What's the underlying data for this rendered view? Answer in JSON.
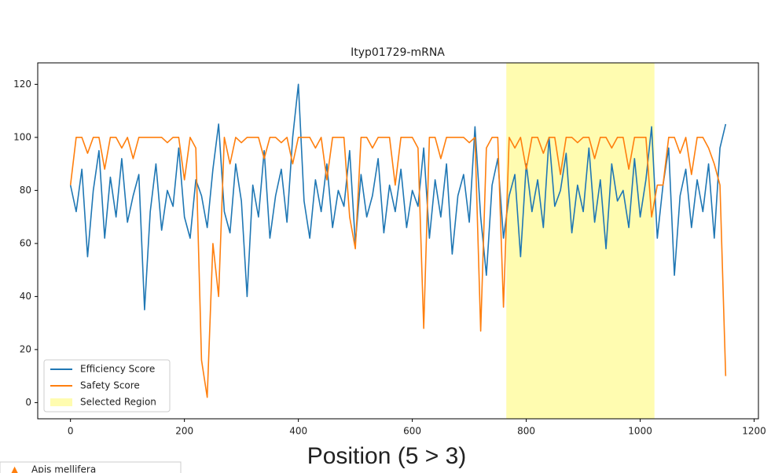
{
  "chart_data": {
    "type": "line",
    "title": "Ityp01729-mRNA",
    "xlabel": "Position (5 > 3)",
    "x": [
      0,
      10,
      20,
      30,
      40,
      50,
      60,
      70,
      80,
      90,
      100,
      110,
      120,
      130,
      140,
      150,
      160,
      170,
      180,
      190,
      200,
      210,
      220,
      230,
      240,
      250,
      260,
      270,
      280,
      290,
      300,
      310,
      320,
      330,
      340,
      350,
      360,
      370,
      380,
      390,
      400,
      410,
      420,
      430,
      440,
      450,
      460,
      470,
      480,
      490,
      500,
      510,
      520,
      530,
      540,
      550,
      560,
      570,
      580,
      590,
      600,
      610,
      620,
      630,
      640,
      650,
      660,
      670,
      680,
      690,
      700,
      710,
      720,
      730,
      740,
      750,
      760,
      770,
      780,
      790,
      800,
      810,
      820,
      830,
      840,
      850,
      860,
      870,
      880,
      890,
      900,
      910,
      920,
      930,
      940,
      950,
      960,
      970,
      980,
      990,
      1000,
      1010,
      1020,
      1030,
      1040,
      1050,
      1060,
      1070,
      1080,
      1090,
      1100,
      1110,
      1120,
      1130,
      1140,
      1150
    ],
    "series": [
      {
        "name": "Efficiency Score",
        "color": "#1f77b4",
        "values": [
          82,
          72,
          88,
          55,
          80,
          95,
          62,
          85,
          70,
          92,
          68,
          78,
          86,
          35,
          72,
          90,
          65,
          80,
          74,
          96,
          70,
          62,
          84,
          78,
          66,
          88,
          105,
          72,
          64,
          90,
          76,
          40,
          82,
          70,
          95,
          62,
          78,
          88,
          68,
          100,
          120,
          76,
          62,
          84,
          72,
          90,
          66,
          80,
          74,
          95,
          60,
          86,
          70,
          78,
          92,
          64,
          82,
          72,
          88,
          66,
          80,
          74,
          96,
          62,
          84,
          70,
          90,
          56,
          78,
          86,
          68,
          104,
          70,
          48,
          82,
          92,
          62,
          78,
          86,
          55,
          90,
          72,
          84,
          66,
          100,
          74,
          80,
          94,
          64,
          82,
          72,
          96,
          68,
          84,
          58,
          90,
          76,
          80,
          66,
          92,
          70,
          84,
          104,
          62,
          82,
          96,
          48,
          78,
          88,
          66,
          84,
          72,
          90,
          62,
          96,
          105
        ]
      },
      {
        "name": "Safety Score",
        "color": "#ff7f0e",
        "values": [
          82,
          100,
          100,
          94,
          100,
          100,
          88,
          100,
          100,
          96,
          100,
          92,
          100,
          100,
          100,
          100,
          100,
          98,
          100,
          100,
          84,
          100,
          96,
          16,
          2,
          60,
          40,
          100,
          90,
          100,
          98,
          100,
          100,
          100,
          92,
          100,
          100,
          98,
          100,
          90,
          100,
          100,
          100,
          96,
          100,
          84,
          100,
          100,
          100,
          70,
          58,
          100,
          100,
          96,
          100,
          100,
          100,
          82,
          100,
          100,
          100,
          96,
          28,
          100,
          100,
          92,
          100,
          100,
          100,
          100,
          98,
          100,
          27,
          96,
          100,
          100,
          36,
          100,
          96,
          100,
          88,
          100,
          100,
          94,
          100,
          100,
          86,
          100,
          100,
          98,
          100,
          100,
          92,
          100,
          100,
          96,
          100,
          100,
          88,
          100,
          100,
          100,
          70,
          82,
          82,
          100,
          100,
          94,
          100,
          86,
          100,
          100,
          96,
          90,
          82,
          10
        ]
      }
    ],
    "selected_region": [
      765,
      1025
    ],
    "selected_region_name": "Selected Region",
    "selected_region_color": "#fffcb0",
    "xlim": [
      -57.5,
      1207.5
    ],
    "ylim": [
      -6.1,
      128.1
    ],
    "xticks": [
      0,
      200,
      400,
      600,
      800,
      1000,
      1200
    ],
    "yticks": [
      0,
      20,
      40,
      60,
      80,
      100,
      120
    ],
    "legend": "lower left",
    "sidebar_label": "Apis mellifera"
  }
}
